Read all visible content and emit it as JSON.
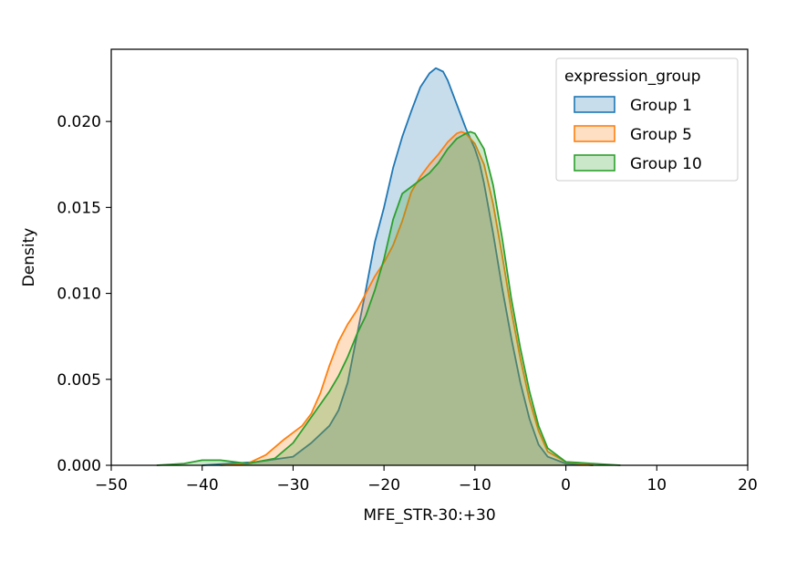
{
  "chart_data": {
    "type": "area",
    "title": "",
    "xlabel": "MFE_STR-30:+30",
    "ylabel": "Density",
    "xlim": [
      -50,
      20
    ],
    "ylim": [
      0,
      0.0242
    ],
    "xticks": [
      -50,
      -40,
      -30,
      -20,
      -10,
      0,
      10,
      20
    ],
    "xtick_labels": [
      "−50",
      "−40",
      "−30",
      "−20",
      "−10",
      "0",
      "10",
      "20"
    ],
    "yticks": [
      0,
      0.005,
      0.01,
      0.015,
      0.02
    ],
    "ytick_labels": [
      "0.000",
      "0.005",
      "0.010",
      "0.015",
      "0.020"
    ],
    "grid": false,
    "legend": {
      "title": "expression_group",
      "position": "top-right"
    },
    "series": [
      {
        "name": "Group 1",
        "color": "#1f77b4",
        "fill_opacity": 0.25,
        "points": [
          [
            -40,
            0
          ],
          [
            -34,
            0.0002
          ],
          [
            -30,
            0.0005
          ],
          [
            -28,
            0.0013
          ],
          [
            -26,
            0.0023
          ],
          [
            -25,
            0.0032
          ],
          [
            -24,
            0.0048
          ],
          [
            -23,
            0.0075
          ],
          [
            -22,
            0.0102
          ],
          [
            -21,
            0.013
          ],
          [
            -20,
            0.015
          ],
          [
            -19,
            0.0173
          ],
          [
            -18,
            0.0191
          ],
          [
            -17,
            0.0206
          ],
          [
            -16,
            0.022
          ],
          [
            -15,
            0.0228
          ],
          [
            -14.3,
            0.0231
          ],
          [
            -13.5,
            0.0229
          ],
          [
            -13,
            0.0224
          ],
          [
            -12,
            0.021
          ],
          [
            -11,
            0.0196
          ],
          [
            -10,
            0.0184
          ],
          [
            -9.5,
            0.0176
          ],
          [
            -9,
            0.0164
          ],
          [
            -8,
            0.0135
          ],
          [
            -7,
            0.0103
          ],
          [
            -6,
            0.0074
          ],
          [
            -5,
            0.0048
          ],
          [
            -4,
            0.0027
          ],
          [
            -3,
            0.0012
          ],
          [
            -2,
            0.0005
          ],
          [
            0,
            0.0001
          ],
          [
            3,
            0
          ]
        ]
      },
      {
        "name": "Group 5",
        "color": "#ff7f0e",
        "fill_opacity": 0.25,
        "points": [
          [
            -38,
            0
          ],
          [
            -35,
            0.0001
          ],
          [
            -33,
            0.0006
          ],
          [
            -31,
            0.0015
          ],
          [
            -30,
            0.0019
          ],
          [
            -29,
            0.0023
          ],
          [
            -28,
            0.003
          ],
          [
            -27,
            0.0042
          ],
          [
            -26,
            0.0058
          ],
          [
            -25,
            0.0072
          ],
          [
            -24,
            0.0082
          ],
          [
            -23,
            0.009
          ],
          [
            -22,
            0.01
          ],
          [
            -21,
            0.011
          ],
          [
            -20,
            0.0118
          ],
          [
            -19,
            0.0128
          ],
          [
            -18,
            0.0142
          ],
          [
            -17,
            0.0159
          ],
          [
            -16,
            0.0168
          ],
          [
            -15,
            0.0175
          ],
          [
            -14,
            0.0181
          ],
          [
            -13,
            0.0188
          ],
          [
            -12,
            0.0193
          ],
          [
            -11.5,
            0.0194
          ],
          [
            -11,
            0.0193
          ],
          [
            -10,
            0.0187
          ],
          [
            -9,
            0.0175
          ],
          [
            -8,
            0.0152
          ],
          [
            -7,
            0.0122
          ],
          [
            -6,
            0.009
          ],
          [
            -5,
            0.0062
          ],
          [
            -4,
            0.0038
          ],
          [
            -3,
            0.002
          ],
          [
            -2,
            0.0008
          ],
          [
            0,
            0.0002
          ],
          [
            3,
            0
          ]
        ]
      },
      {
        "name": "Group 10",
        "color": "#2ca02c",
        "fill_opacity": 0.25,
        "points": [
          [
            -45,
            0
          ],
          [
            -42,
            0.0001
          ],
          [
            -40,
            0.0003
          ],
          [
            -38,
            0.0003
          ],
          [
            -35,
            0.0001
          ],
          [
            -32,
            0.0004
          ],
          [
            -30,
            0.0013
          ],
          [
            -28,
            0.0028
          ],
          [
            -26,
            0.0043
          ],
          [
            -25,
            0.0052
          ],
          [
            -24,
            0.0063
          ],
          [
            -23,
            0.0076
          ],
          [
            -22,
            0.0087
          ],
          [
            -21,
            0.0102
          ],
          [
            -20,
            0.012
          ],
          [
            -19,
            0.0143
          ],
          [
            -18,
            0.0158
          ],
          [
            -17,
            0.0162
          ],
          [
            -16,
            0.0166
          ],
          [
            -15,
            0.017
          ],
          [
            -14,
            0.0176
          ],
          [
            -13,
            0.0184
          ],
          [
            -12,
            0.019
          ],
          [
            -11,
            0.0193
          ],
          [
            -10.5,
            0.0194
          ],
          [
            -10,
            0.0193
          ],
          [
            -9,
            0.0184
          ],
          [
            -8,
            0.0163
          ],
          [
            -7,
            0.0132
          ],
          [
            -6,
            0.0097
          ],
          [
            -5,
            0.0068
          ],
          [
            -4,
            0.0043
          ],
          [
            -3,
            0.0023
          ],
          [
            -2,
            0.001
          ],
          [
            0,
            0.0002
          ],
          [
            3,
            0.0001
          ],
          [
            6,
            0
          ]
        ]
      }
    ]
  }
}
